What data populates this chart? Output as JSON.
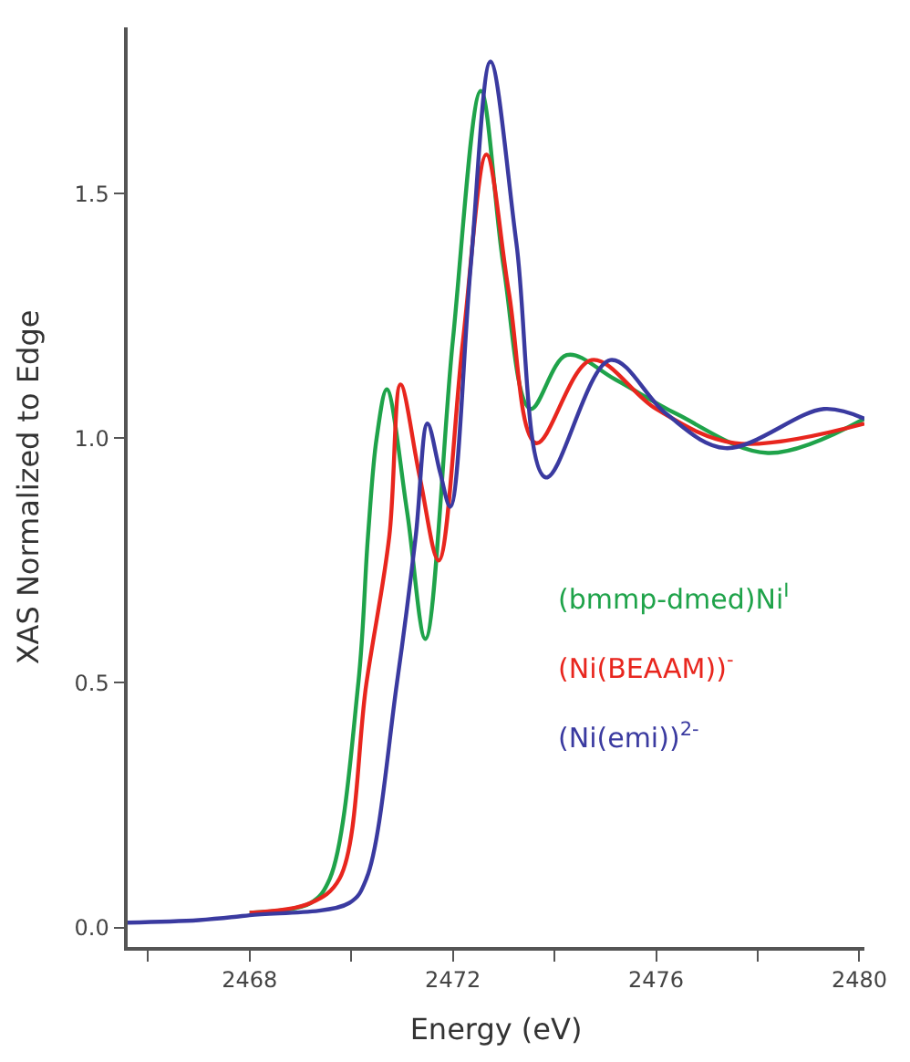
{
  "chart_data": {
    "type": "line",
    "xlabel": "Energy (eV)",
    "ylabel": "XAS Normalized to Edge",
    "xlim": [
      2465.6,
      2480.1
    ],
    "ylim": [
      -0.04,
      1.84
    ],
    "xticks": [
      {
        "value": 2466,
        "label": null
      },
      2468,
      {
        "value": 2470,
        "label": null
      },
      2472,
      {
        "value": 2474,
        "label": null
      },
      2476,
      {
        "value": 2478,
        "label": null
      },
      2480
    ],
    "yticks": [
      {
        "value": 0,
        "label": "0.0"
      },
      {
        "value": 0.5,
        "label": "0.5"
      },
      {
        "value": 1,
        "label": "1.0"
      },
      {
        "value": 1.5,
        "label": "1.5"
      }
    ],
    "legend": false,
    "marker": "none",
    "line_style": "solid",
    "series": [
      {
        "name": "(bmmp-dmed)Ni$^{I}$",
        "color": "#1fa34a",
        "x": [
          2468,
          2469.2,
          2469.58,
          2470.14,
          2470.33,
          2470.5,
          2470.7,
          2471.1,
          2471.46,
          2472.0,
          2472.55,
          2473.0,
          2473.53,
          2474.24,
          2475.2,
          2476.4,
          2478.2,
          2480.1
        ],
        "values": [
          0.03,
          0.05,
          0.1,
          0.5,
          0.8,
          1.0,
          1.1,
          0.85,
          0.59,
          1.2,
          1.71,
          1.35,
          1.06,
          1.17,
          1.12,
          1.05,
          0.97,
          1.04
        ]
      },
      {
        "name": "(Ni(BEAAM))$^{-}$",
        "color": "#e8261e",
        "x": [
          2468,
          2469.2,
          2469.77,
          2470.3,
          2470.75,
          2470.97,
          2471.35,
          2471.72,
          2472.2,
          2472.66,
          2473.1,
          2473.64,
          2474.73,
          2476.0,
          2477.55,
          2480.1
        ],
        "values": [
          0.03,
          0.05,
          0.1,
          0.5,
          0.8,
          1.11,
          0.92,
          0.75,
          1.2,
          1.58,
          1.3,
          0.99,
          1.16,
          1.06,
          0.99,
          1.03
        ]
      },
      {
        "name": "(Ni(emi))$^{2-}$",
        "color": "#3a3aa0",
        "x": [
          2465.6,
          2467,
          2468,
          2469.96,
          2470.3,
          2470.9,
          2471.27,
          2471.5,
          2471.75,
          2471.95,
          2472.35,
          2472.74,
          2473.25,
          2473.83,
          2475.1,
          2476.2,
          2477.36,
          2479.3,
          2480.1
        ],
        "values": [
          0.01,
          0.015,
          0.025,
          0.05,
          0.1,
          0.5,
          0.8,
          1.03,
          0.93,
          0.86,
          1.35,
          1.77,
          1.4,
          0.92,
          1.16,
          1.05,
          0.98,
          1.06,
          1.04
        ]
      }
    ]
  }
}
